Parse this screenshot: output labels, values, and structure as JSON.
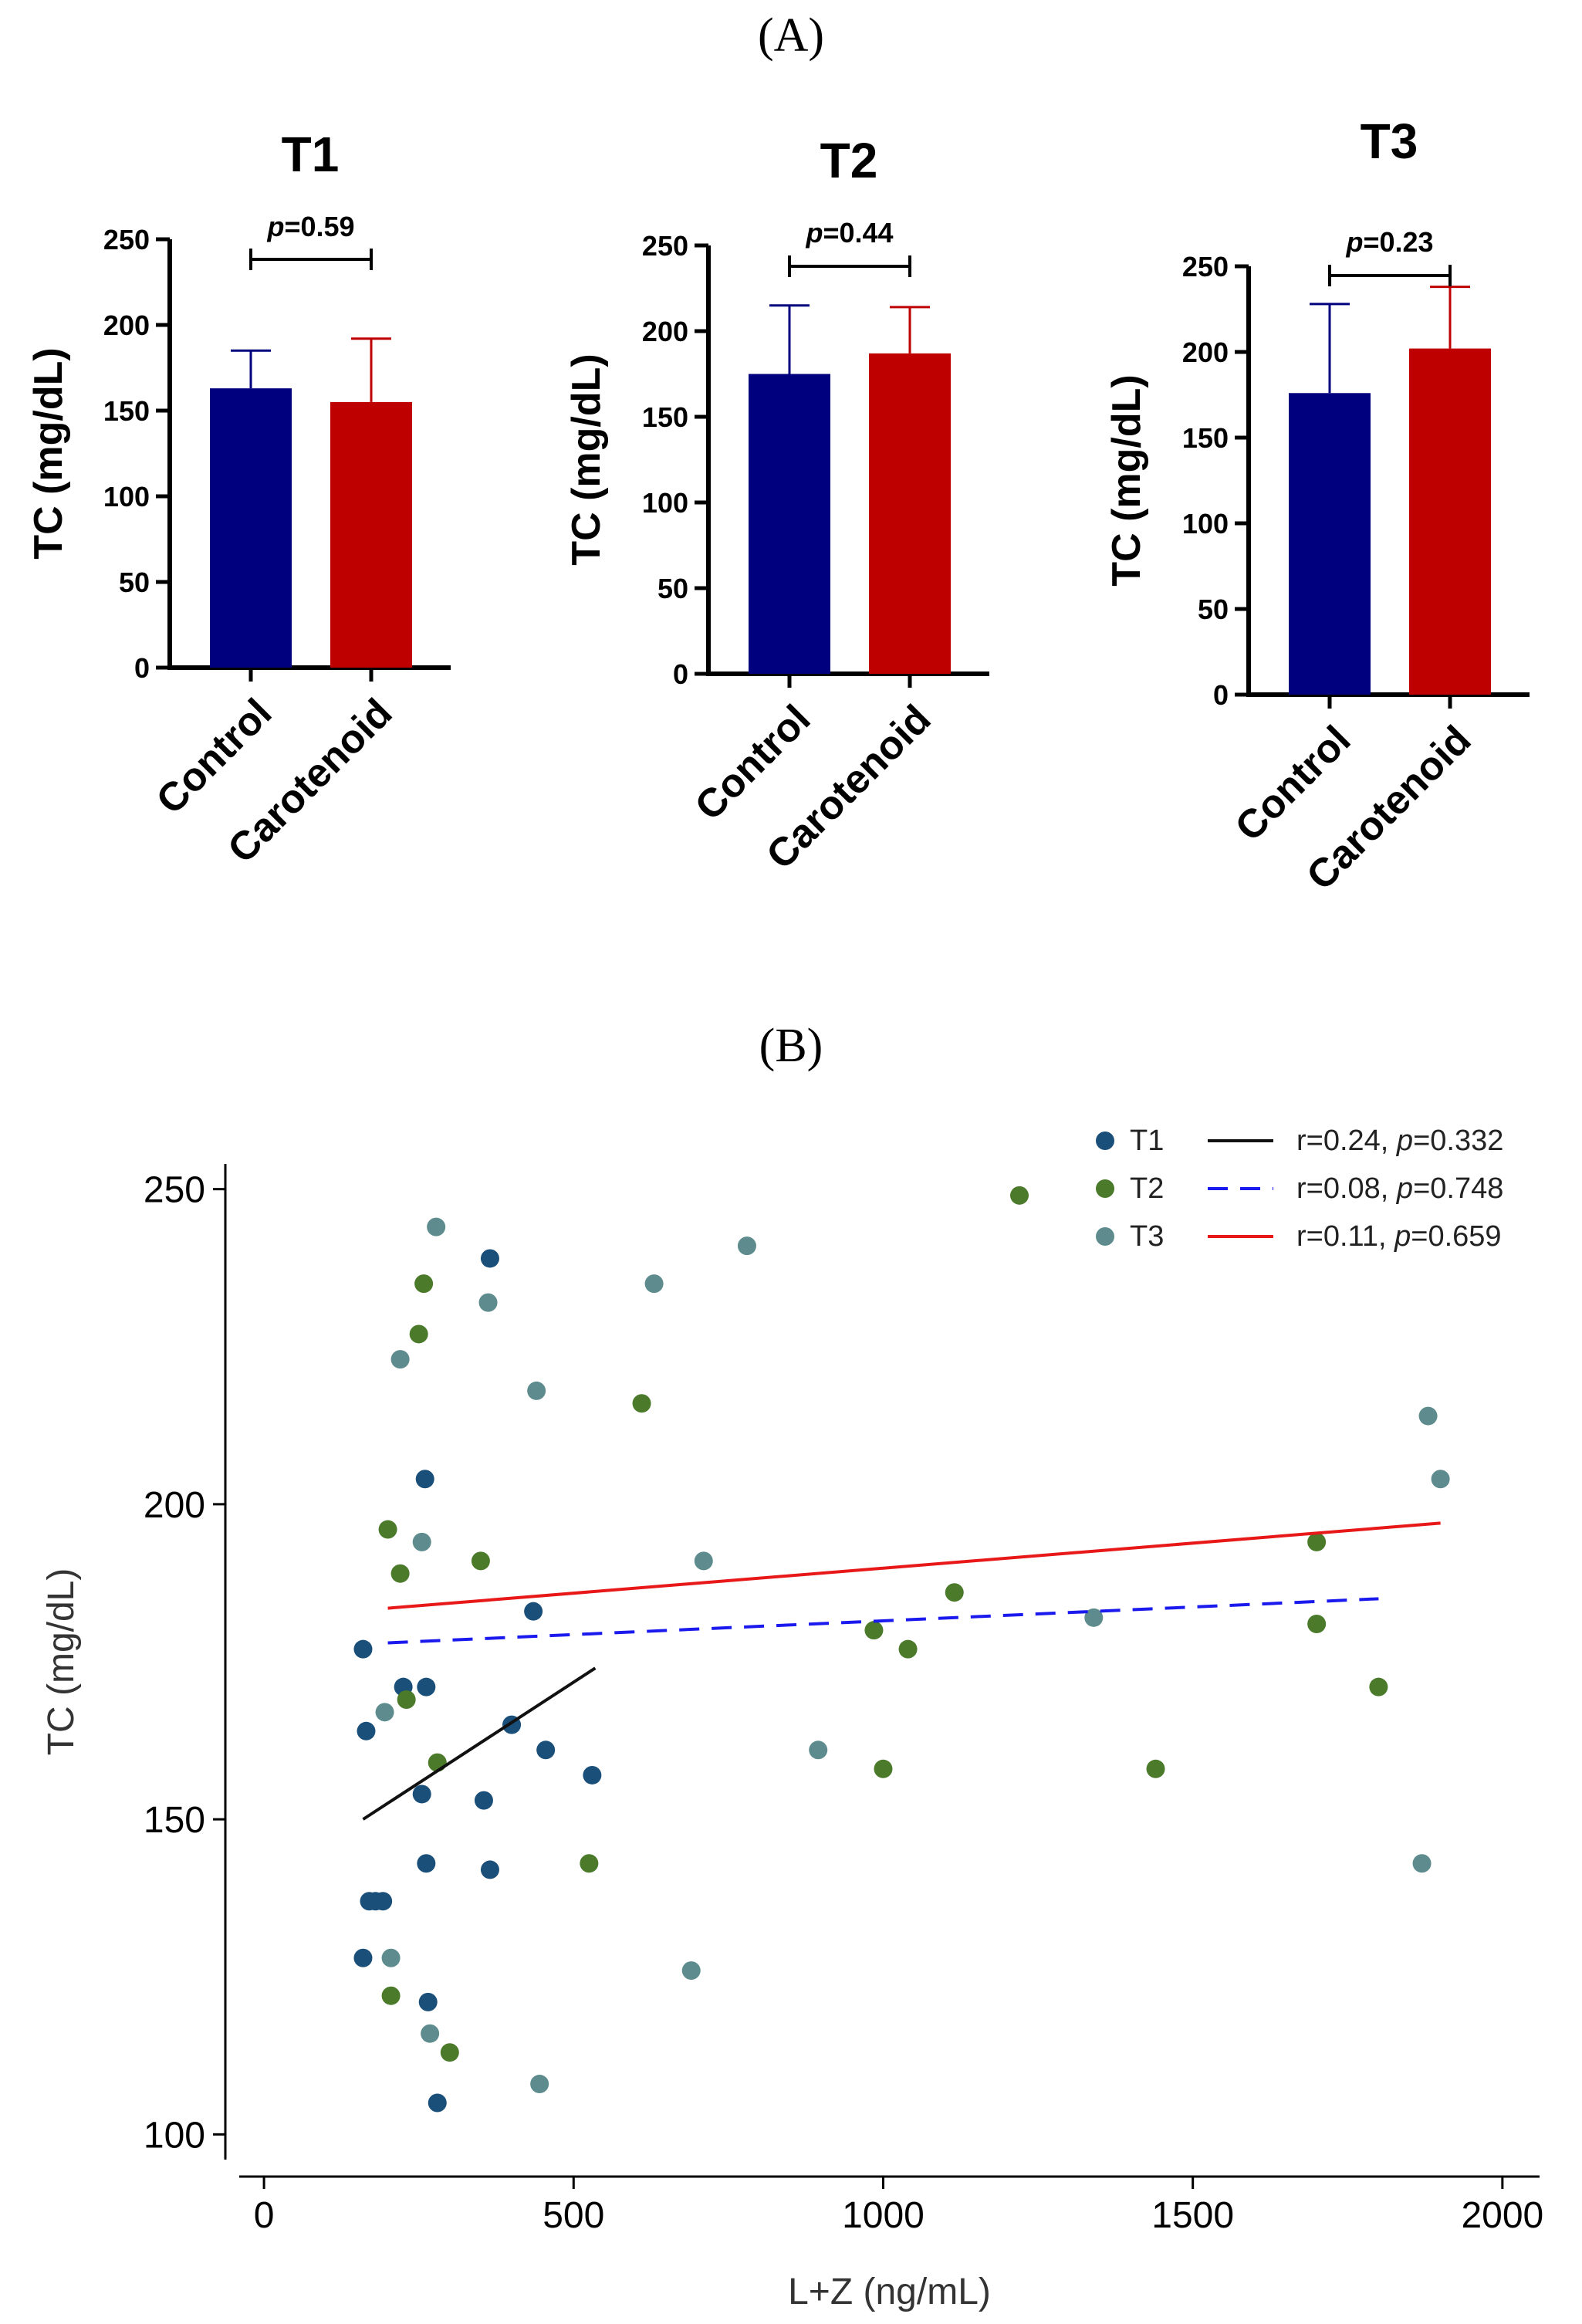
{
  "panel_labels": {
    "a": "(A)",
    "b": "(B)"
  },
  "chart_data": [
    {
      "type": "bar",
      "title": "T1",
      "ylabel": "TC (mg/dL)",
      "xlabel": "",
      "ylim": [
        0,
        250
      ],
      "yticks": [
        0,
        50,
        100,
        150,
        200,
        250
      ],
      "categories": [
        "Control",
        "Carotenoid"
      ],
      "values": [
        163,
        155
      ],
      "errors": [
        22,
        37
      ],
      "colors": [
        "#00007f",
        "#bf0000"
      ],
      "annotation": {
        "p_label": "p",
        "p_value": "=0.59"
      }
    },
    {
      "type": "bar",
      "title": "T2",
      "ylabel": "TC (mg/dL)",
      "xlabel": "",
      "ylim": [
        0,
        250
      ],
      "yticks": [
        0,
        50,
        100,
        150,
        200,
        250
      ],
      "categories": [
        "Control",
        "Carotenoid"
      ],
      "values": [
        175,
        187
      ],
      "errors": [
        40,
        27
      ],
      "colors": [
        "#00007f",
        "#bf0000"
      ],
      "annotation": {
        "p_label": "p",
        "p_value": "=0.44"
      }
    },
    {
      "type": "bar",
      "title": "T3",
      "ylabel": "TC (mg/dL)",
      "xlabel": "",
      "ylim": [
        0,
        250
      ],
      "yticks": [
        0,
        50,
        100,
        150,
        200,
        250
      ],
      "categories": [
        "Control",
        "Carotenoid"
      ],
      "values": [
        176,
        202
      ],
      "errors": [
        52,
        36
      ],
      "colors": [
        "#00007f",
        "#bf0000"
      ],
      "annotation": {
        "p_label": "p",
        "p_value": "=0.23"
      }
    },
    {
      "type": "scatter",
      "title": "",
      "xlabel": "L+Z (ng/mL)",
      "ylabel": "TC (mg/dL)",
      "xlim": [
        -40,
        2060
      ],
      "ylim": [
        96,
        254
      ],
      "xticks": [
        0,
        500,
        1000,
        1500,
        2000
      ],
      "yticks": [
        100,
        150,
        200,
        250
      ],
      "series": [
        {
          "name": "T1",
          "color": "#1a4f7a",
          "points": [
            [
              160,
              177
            ],
            [
              165,
              164
            ],
            [
              160,
              128
            ],
            [
              170,
              137
            ],
            [
              180,
              137
            ],
            [
              192,
              137
            ],
            [
              225,
              171
            ],
            [
              260,
              204
            ],
            [
              255,
              154
            ],
            [
              262,
              171
            ],
            [
              262,
              143
            ],
            [
              265,
              121
            ],
            [
              280,
              105
            ],
            [
              355,
              153
            ],
            [
              365,
              239
            ],
            [
              365,
              142
            ],
            [
              400,
              165
            ],
            [
              435,
              183
            ],
            [
              455,
              161
            ],
            [
              530,
              157
            ]
          ],
          "fit": {
            "x": [
              160,
              535
            ],
            "y": [
              150,
              174
            ]
          },
          "line_color": "#111111",
          "line_style": "solid",
          "stat_r": "r=0.24, ",
          "stat_p_label": "p",
          "stat_p": "=0.332"
        },
        {
          "name": "T2",
          "color": "#4a7a2a",
          "points": [
            [
              200,
              196
            ],
            [
              205,
              122
            ],
            [
              220,
              189
            ],
            [
              230,
              169
            ],
            [
              250,
              227
            ],
            [
              258,
              235
            ],
            [
              280,
              159
            ],
            [
              300,
              113
            ],
            [
              350,
              191
            ],
            [
              525,
              143
            ],
            [
              610,
              216
            ],
            [
              985,
              180
            ],
            [
              1000,
              158
            ],
            [
              1040,
              177
            ],
            [
              1115,
              186
            ],
            [
              1220,
              249
            ],
            [
              1440,
              158
            ],
            [
              1700,
              194
            ],
            [
              1700,
              181
            ],
            [
              1800,
              171
            ]
          ],
          "fit": {
            "x": [
              200,
              1800
            ],
            "y": [
              178,
              185
            ]
          },
          "line_color": "#1a1aee",
          "line_style": "dashed",
          "stat_r": "r=0.08, ",
          "stat_p_label": "p",
          "stat_p": "=0.748"
        },
        {
          "name": "T3",
          "color": "#5e8c8e",
          "points": [
            [
              195,
              167
            ],
            [
              205,
              128
            ],
            [
              220,
              223
            ],
            [
              255,
              194
            ],
            [
              268,
              116
            ],
            [
              278,
              244
            ],
            [
              362,
              232
            ],
            [
              440,
              218
            ],
            [
              445,
              108
            ],
            [
              630,
              235
            ],
            [
              690,
              126
            ],
            [
              710,
              191
            ],
            [
              780,
              241
            ],
            [
              895,
              161
            ],
            [
              1340,
              182
            ],
            [
              1870,
              143
            ],
            [
              1880,
              214
            ],
            [
              1900,
              204
            ]
          ],
          "fit": {
            "x": [
              200,
              1900
            ],
            "y": [
              183.5,
              197
            ]
          },
          "line_color": "#e81818",
          "line_style": "solid",
          "stat_r": "r=0.11, ",
          "stat_p_label": "p",
          "stat_p": "=0.659"
        }
      ]
    }
  ]
}
